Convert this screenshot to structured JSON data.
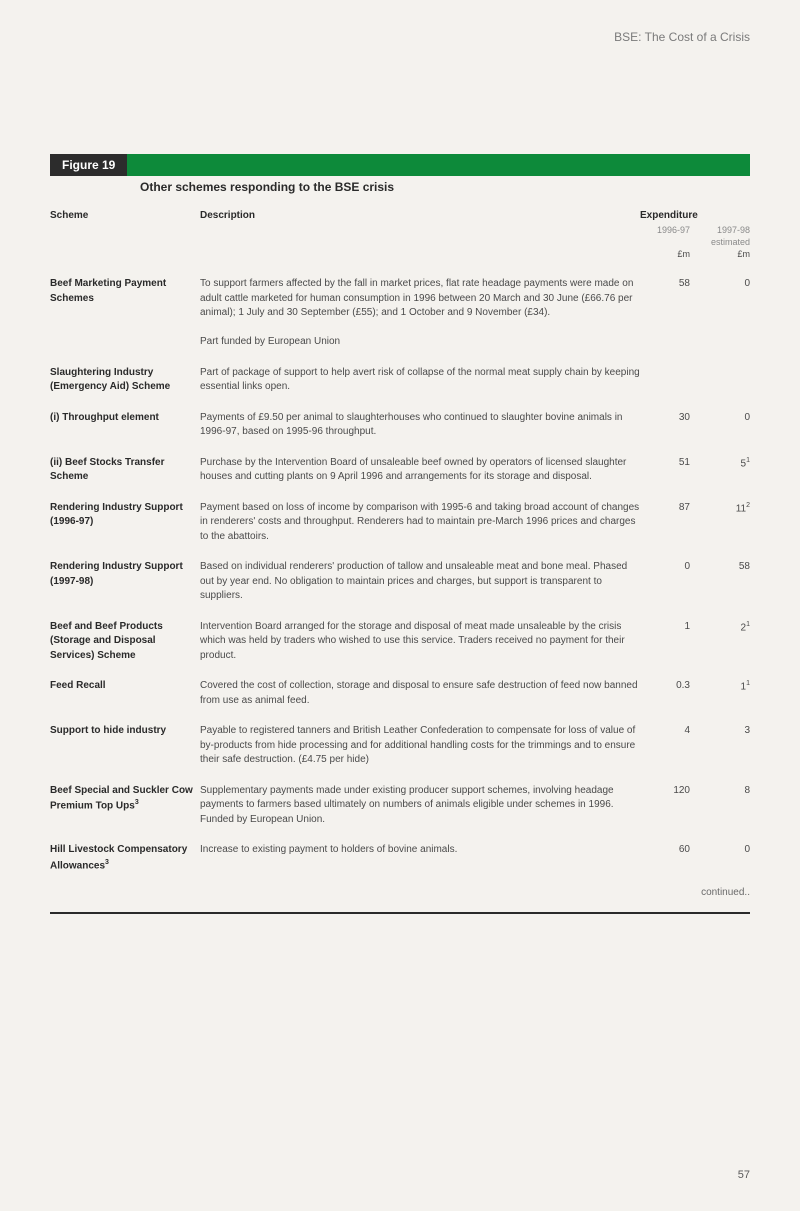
{
  "running_head": "BSE: The Cost of a Crisis",
  "figure": {
    "label": "Figure 19",
    "title": "Other schemes responding to the BSE crisis"
  },
  "headers": {
    "scheme": "Scheme",
    "description": "Description",
    "expenditure": "Expenditure",
    "y1": "1996-97",
    "y2": "1997-98",
    "y2sub": "estimated",
    "unit": "£m"
  },
  "colors": {
    "page_bg": "#f4f2ee",
    "figure_label_bg": "#2c2c2c",
    "figure_label_fg": "#ffffff",
    "figure_bar": "#0d8a3a",
    "muted_text": "#8a8a8a",
    "body_text": "#4a4a4a"
  },
  "rows": [
    {
      "scheme": "Beef Marketing Payment Schemes",
      "desc": "To support farmers affected by the fall in market prices, flat rate headage payments were made on adult cattle marketed for human consumption in 1996 between 20 March and 30 June (£66.76 per animal); 1 July and 30 September (£55); and 1 October and 9 November (£34).",
      "desc2": "Part funded by European Union",
      "v1": "58",
      "v2": "0"
    },
    {
      "scheme": "Slaughtering Industry (Emergency Aid) Scheme",
      "desc": "Part of package of support to help avert risk of collapse of the normal meat supply chain by keeping essential links open.",
      "v1": "",
      "v2": ""
    },
    {
      "scheme": "(i) Throughput element",
      "indent": true,
      "desc": "Payments of £9.50 per animal to slaughterhouses who continued to slaughter bovine animals in 1996-97, based on 1995-96 throughput.",
      "v1": "30",
      "v2": "0"
    },
    {
      "scheme": "(ii) Beef Stocks Transfer Scheme",
      "indent": true,
      "desc": "Purchase by the Intervention Board of unsaleable beef owned by operators of licensed slaughter houses and cutting plants on 9 April 1996 and arrangements for its storage and disposal.",
      "v1": "51",
      "v2": "5",
      "v2sup": "1"
    },
    {
      "scheme": "Rendering Industry Support (1996-97)",
      "desc": "Payment based on loss of income by comparison with 1995-6 and taking broad account of changes in renderers' costs and throughput. Renderers had to maintain pre-March 1996 prices and charges to the abattoirs.",
      "v1": "87",
      "v2": "11",
      "v2sup": "2"
    },
    {
      "scheme": "Rendering Industry Support (1997-98)",
      "desc": "Based on individual renderers' production of tallow and unsaleable meat and bone meal. Phased out by year end. No obligation to maintain prices and charges, but support is transparent to suppliers.",
      "v1": "0",
      "v2": "58"
    },
    {
      "scheme": "Beef and Beef Products (Storage and Disposal Services) Scheme",
      "desc": "Intervention Board arranged for the storage and disposal of meat made unsaleable by the crisis which was held by traders who wished to use this service. Traders received no payment for their product.",
      "v1": "1",
      "v2": "2",
      "v2sup": "1"
    },
    {
      "scheme": "Feed Recall",
      "desc": "Covered the cost of collection, storage and disposal to ensure safe destruction of feed now banned from use as animal feed.",
      "v1": "0.3",
      "v2": "1",
      "v2sup": "1"
    },
    {
      "scheme": "Support to hide industry",
      "desc": "Payable to registered tanners and British Leather Confederation to compensate for loss of value of by-products from hide processing and for additional handling costs for the trimmings and to ensure their safe destruction. (£4.75 per hide)",
      "v1": "4",
      "v2": "3"
    },
    {
      "scheme": "Beef Special and Suckler Cow Premium Top Ups",
      "scheme_sup": "3",
      "desc": "Supplementary payments made under existing producer support schemes, involving headage payments to farmers based ultimately on numbers of animals eligible under schemes in 1996. Funded by European Union.",
      "v1": "120",
      "v2": "8"
    },
    {
      "scheme": "Hill Livestock Compensatory Allowances",
      "scheme_sup": "3",
      "desc": "Increase to existing payment to holders of bovine animals.",
      "v1": "60",
      "v2": "0"
    }
  ],
  "continued": "continued..",
  "page_num": "57"
}
